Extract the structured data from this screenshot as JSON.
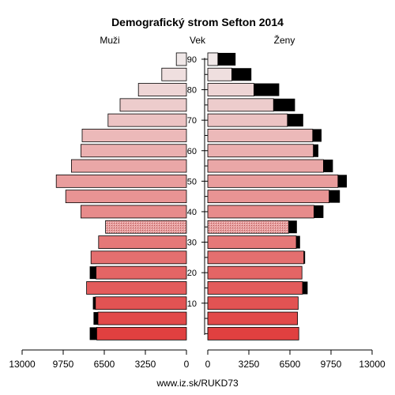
{
  "chart_data": {
    "type": "bar",
    "title": "Demografický strom Sefton 2014",
    "left_label": "Muži",
    "center_label": "Vek",
    "right_label": "Ženy",
    "footer": "www.iz.sk/RUKD73",
    "age_ticks": [
      "10",
      "20",
      "30",
      "40",
      "50",
      "60",
      "70",
      "80",
      "90"
    ],
    "xlim": [
      0,
      13000
    ],
    "x_tick_labels_left": [
      "13000",
      "9750",
      "6500",
      "3250",
      "0"
    ],
    "x_tick_labels_right": [
      "0",
      "3250",
      "6500",
      "9750",
      "13000"
    ],
    "age_groups": [
      "0-4",
      "5-9",
      "10-14",
      "15-19",
      "20-24",
      "25-29",
      "30-34",
      "35-39",
      "40-44",
      "45-49",
      "50-54",
      "55-59",
      "60-64",
      "65-69",
      "70-74",
      "75-79",
      "80-84",
      "85-89",
      "90+"
    ],
    "series": [
      {
        "name": "Muži",
        "values": [
          7650,
          7350,
          7400,
          7900,
          7650,
          7550,
          6950,
          6400,
          8350,
          9550,
          10300,
          9100,
          8350,
          8250,
          6200,
          5250,
          3800,
          1950,
          800
        ]
      },
      {
        "name": "Ženy",
        "values": [
          7200,
          7100,
          7150,
          7900,
          7450,
          7700,
          7300,
          7050,
          9150,
          10450,
          11000,
          9900,
          8750,
          9000,
          7550,
          6900,
          5650,
          3450,
          2200
        ]
      },
      {
        "values": [
          550,
          350,
          200,
          400,
          500,
          100,
          300,
          650,
          750,
          850,
          700,
          750,
          400,
          700,
          1250,
          1700,
          2000,
          1550,
          1400
        ]
      }
    ],
    "pattern_group": "35-39",
    "colors": {
      "stroke": "#000000",
      "excess": "#000000",
      "young": "#e04040",
      "old": "#f0e8e8"
    }
  }
}
